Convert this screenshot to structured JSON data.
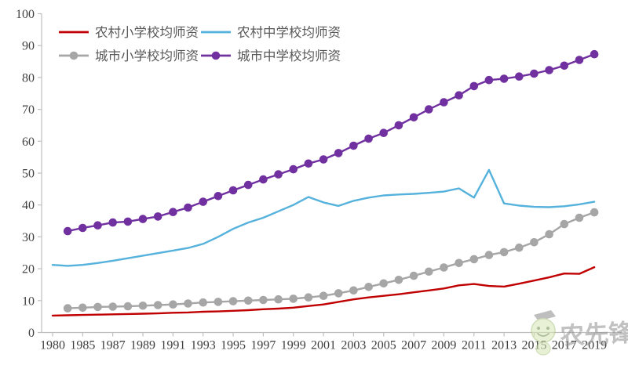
{
  "chart_data": {
    "type": "line",
    "title": "",
    "xlabel": "",
    "ylabel": "",
    "grid": false,
    "legend_position": "top-left",
    "x_tick_labels": [
      "1980",
      "1985",
      "1987",
      "1989",
      "1991",
      "1993",
      "1995",
      "1997",
      "1999",
      "2001",
      "2003",
      "2005",
      "2007",
      "2009",
      "2011",
      "2013",
      "2015",
      "2017",
      "2019"
    ],
    "categories": [
      "1980",
      "",
      "1985",
      "",
      "1987",
      "",
      "1989",
      "",
      "1991",
      "",
      "1993",
      "",
      "1995",
      "",
      "1997",
      "",
      "1999",
      "",
      "2001",
      "",
      "2003",
      "",
      "2005",
      "",
      "2007",
      "",
      "2009",
      "",
      "2011",
      "",
      "2013",
      "",
      "2015",
      "",
      "2017",
      "",
      "2019"
    ],
    "y_axis": {
      "min": 0,
      "max": 100,
      "step": 10,
      "tick_labels": [
        "0",
        "10",
        "20",
        "30",
        "40",
        "50",
        "60",
        "70",
        "80",
        "90",
        "100"
      ]
    },
    "series": [
      {
        "id": "rural-primary",
        "name": "农村小学校均师资",
        "color": "#C00000",
        "marker": false,
        "values": [
          5.3,
          5.4,
          5.5,
          5.6,
          5.7,
          5.8,
          5.9,
          6.0,
          6.2,
          6.3,
          6.5,
          6.6,
          6.8,
          7.0,
          7.3,
          7.5,
          7.8,
          8.3,
          8.8,
          9.6,
          10.4,
          11.0,
          11.5,
          12.0,
          12.6,
          13.2,
          13.8,
          14.8,
          15.2,
          14.6,
          14.4,
          15.3,
          16.3,
          17.3,
          18.5,
          18.4,
          20.5
        ]
      },
      {
        "id": "rural-secondary",
        "name": "农村中学校均师资",
        "color": "#55B2DC",
        "marker": false,
        "values": [
          21.2,
          20.9,
          21.2,
          21.8,
          22.5,
          23.3,
          24.1,
          24.9,
          25.7,
          26.5,
          27.8,
          30.0,
          32.5,
          34.5,
          36.0,
          38.0,
          40.0,
          42.5,
          40.8,
          39.7,
          41.3,
          42.3,
          43.0,
          43.3,
          43.5,
          43.8,
          44.2,
          45.2,
          42.3,
          51.0,
          40.5,
          39.8,
          39.4,
          39.3,
          39.6,
          40.2,
          41.0
        ]
      },
      {
        "id": "urban-primary",
        "name": "城市小学校均师资",
        "color": "#A6A6A6",
        "marker": true,
        "values": [
          null,
          7.6,
          7.8,
          8.0,
          8.1,
          8.2,
          8.4,
          8.6,
          8.8,
          9.1,
          9.4,
          9.6,
          9.8,
          10.0,
          10.2,
          10.4,
          10.6,
          11.0,
          11.5,
          12.3,
          13.2,
          14.3,
          15.4,
          16.5,
          17.8,
          19.1,
          20.4,
          21.8,
          23.0,
          24.3,
          25.2,
          26.6,
          28.3,
          30.8,
          34.0,
          36.0,
          37.7
        ]
      },
      {
        "id": "urban-secondary",
        "name": "城市中学校均师资",
        "color": "#7030A0",
        "marker": true,
        "values": [
          null,
          31.8,
          32.8,
          33.6,
          34.5,
          34.8,
          35.6,
          36.4,
          37.8,
          39.2,
          41.0,
          42.8,
          44.6,
          46.3,
          48.0,
          49.6,
          51.2,
          53.0,
          54.3,
          56.3,
          58.6,
          60.8,
          62.6,
          65.0,
          67.5,
          70.0,
          72.2,
          74.4,
          77.3,
          79.2,
          79.6,
          80.3,
          81.2,
          82.3,
          83.7,
          85.5,
          87.3
        ]
      }
    ],
    "colors": {
      "axis": "#BFBFBF",
      "tick_label": "#3F3F3F",
      "legend_text": "#595959"
    }
  },
  "watermark": {
    "text": "农先锋"
  }
}
